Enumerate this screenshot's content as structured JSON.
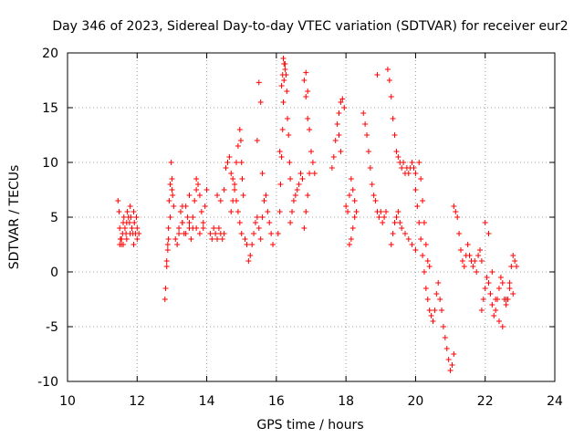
{
  "chart_data": {
    "type": "scatter",
    "title": "Day 346 of 2023, Sidereal Day-to-day VTEC variation (SDTVAR) for receiver eur2",
    "xlabel": "GPS time / hours",
    "ylabel": "SDTVAR / TECUs",
    "xlim": [
      10,
      24
    ],
    "ylim": [
      -10,
      20
    ],
    "xticks": [
      10,
      12,
      14,
      16,
      18,
      20,
      22,
      24
    ],
    "yticks": [
      -10,
      -5,
      0,
      5,
      10,
      15,
      20
    ],
    "xtick_labels": [
      "10",
      "12",
      "14",
      "16",
      "18",
      "20",
      "22",
      "24"
    ],
    "ytick_labels": [
      "-10",
      "-5",
      "0",
      "5",
      "10",
      "15",
      "20"
    ],
    "grid": true,
    "marker": "+",
    "marker_color": "#ff0000",
    "series": [
      {
        "name": "eur2",
        "x": [
          11.45,
          11.48,
          11.5,
          11.52,
          11.55,
          11.58,
          11.6,
          11.62,
          11.65,
          11.68,
          11.7,
          11.72,
          11.75,
          11.78,
          11.8,
          11.82,
          11.85,
          11.88,
          11.9,
          11.92,
          11.95,
          11.98,
          12.0,
          12.05,
          11.5,
          11.55,
          11.6,
          11.7,
          11.8,
          11.9,
          12.0,
          12.8,
          12.82,
          12.85,
          12.88,
          12.9,
          12.92,
          12.95,
          12.98,
          13.0,
          13.02,
          13.05,
          12.85,
          12.88,
          12.9,
          12.95,
          13.0,
          13.1,
          13.15,
          13.2,
          13.25,
          13.3,
          13.35,
          13.4,
          13.45,
          13.5,
          13.55,
          13.6,
          13.65,
          13.7,
          13.75,
          13.8,
          13.85,
          13.9,
          13.95,
          14.0,
          13.2,
          13.3,
          13.4,
          13.5,
          13.6,
          13.7,
          13.8,
          13.9,
          13.3,
          13.5,
          13.7,
          14.1,
          14.15,
          14.2,
          14.25,
          14.3,
          14.35,
          14.4,
          14.45,
          14.5,
          14.3,
          14.4,
          14.5,
          14.55,
          14.6,
          14.65,
          14.7,
          14.75,
          14.8,
          14.85,
          14.9,
          14.95,
          15.0,
          14.7,
          14.75,
          14.8,
          14.85,
          14.9,
          14.95,
          14.98,
          15.0,
          15.02,
          15.05,
          15.1,
          15.15,
          15.2,
          15.25,
          15.3,
          15.35,
          15.4,
          15.45,
          15.5,
          15.55,
          15.6,
          15.65,
          15.7,
          15.75,
          15.8,
          15.85,
          15.9,
          15.5,
          15.55,
          15.45,
          15.6,
          16.05,
          16.1,
          16.12,
          16.15,
          16.18,
          16.2,
          16.22,
          16.25,
          16.28,
          16.3,
          16.32,
          16.35,
          16.38,
          16.4,
          16.2,
          16.22,
          16.25,
          16.18,
          16.15,
          16.1,
          16.4,
          16.45,
          16.5,
          16.55,
          16.6,
          16.65,
          16.7,
          16.75,
          16.8,
          16.85,
          16.9,
          16.95,
          17.0,
          16.8,
          16.85,
          16.9,
          16.95,
          17.0,
          17.05,
          17.1,
          16.85,
          16.9,
          17.6,
          17.65,
          17.7,
          17.75,
          17.8,
          17.85,
          17.9,
          17.95,
          17.8,
          17.85,
          18.0,
          18.05,
          18.1,
          18.15,
          18.2,
          18.25,
          18.3,
          18.1,
          18.15,
          18.2,
          18.25,
          18.5,
          18.55,
          18.6,
          18.65,
          18.7,
          18.75,
          18.8,
          18.85,
          18.9,
          18.95,
          18.9,
          19.0,
          19.05,
          19.1,
          19.15,
          19.2,
          19.25,
          19.3,
          19.35,
          19.4,
          19.45,
          19.5,
          19.55,
          19.6,
          19.65,
          19.7,
          19.75,
          19.8,
          19.85,
          19.9,
          19.95,
          20.0,
          19.3,
          19.35,
          19.4,
          19.45,
          19.5,
          19.55,
          19.6,
          19.7,
          19.8,
          19.9,
          20.0,
          20.0,
          20.05,
          20.1,
          20.15,
          20.2,
          20.25,
          20.3,
          20.35,
          20.4,
          20.45,
          20.5,
          20.55,
          20.6,
          20.65,
          20.7,
          20.75,
          20.8,
          20.85,
          20.9,
          20.95,
          21.0,
          21.05,
          21.1,
          20.1,
          20.15,
          20.2,
          20.25,
          20.3,
          20.35,
          20.4,
          21.1,
          21.15,
          21.2,
          21.25,
          21.3,
          21.35,
          21.4,
          21.45,
          21.5,
          21.55,
          21.6,
          21.65,
          21.7,
          21.75,
          21.8,
          21.85,
          21.9,
          21.9,
          21.95,
          22.0,
          22.05,
          22.1,
          22.15,
          22.2,
          22.25,
          22.3,
          22.35,
          22.4,
          22.45,
          22.5,
          22.55,
          22.6,
          22.65,
          22.7,
          22.75,
          22.8,
          22.85,
          22.9,
          22.0,
          22.1,
          22.2,
          22.3,
          22.4,
          22.5,
          22.6,
          22.7,
          22.8
        ],
        "y": [
          6.5,
          5.5,
          4.0,
          3.0,
          2.5,
          3.5,
          4.5,
          5.0,
          4.0,
          3.5,
          4.5,
          5.5,
          5.0,
          4.5,
          6.0,
          5.0,
          4.0,
          3.5,
          5.5,
          4.5,
          3.5,
          5.0,
          3.0,
          3.5,
          2.5,
          3.0,
          2.5,
          3.0,
          3.5,
          2.5,
          4.0,
          -2.5,
          -1.5,
          0.5,
          2.0,
          4.0,
          6.5,
          8.0,
          10.0,
          8.5,
          7.0,
          6.0,
          1.0,
          2.5,
          3.0,
          5.0,
          7.5,
          3.0,
          2.5,
          4.0,
          5.5,
          4.5,
          3.5,
          6.0,
          5.0,
          4.5,
          3.0,
          4.0,
          6.5,
          7.5,
          8.0,
          7.0,
          5.5,
          4.0,
          6.0,
          7.5,
          3.5,
          4.5,
          3.5,
          4.0,
          5.0,
          4.0,
          3.5,
          4.5,
          6.0,
          7.0,
          8.5,
          3.5,
          3.0,
          4.0,
          3.5,
          3.0,
          4.0,
          3.5,
          3.0,
          3.5,
          7.0,
          6.5,
          7.5,
          9.5,
          10.0,
          10.5,
          9.0,
          8.5,
          7.5,
          6.5,
          5.5,
          4.5,
          3.5,
          5.5,
          6.5,
          8.0,
          10.0,
          11.5,
          13.0,
          12.0,
          10.0,
          8.5,
          7.0,
          3.0,
          2.5,
          1.0,
          1.5,
          2.5,
          3.5,
          4.5,
          5.0,
          4.0,
          3.0,
          5.0,
          6.5,
          7.0,
          5.5,
          4.5,
          3.5,
          2.5,
          17.3,
          15.5,
          12.0,
          9.0,
          3.5,
          5.5,
          8.0,
          10.5,
          13.0,
          15.5,
          17.5,
          19.0,
          18.0,
          16.5,
          14.0,
          12.5,
          10.0,
          8.5,
          19.5,
          19.0,
          18.5,
          18.0,
          17.0,
          11.0,
          4.5,
          5.5,
          6.5,
          7.0,
          7.5,
          8.0,
          9.0,
          8.5,
          4.0,
          5.5,
          7.0,
          9.0,
          11.0,
          17.5,
          16.0,
          14.0,
          13.0,
          11.0,
          10.0,
          9.0,
          18.2,
          16.5,
          9.5,
          10.5,
          12.0,
          13.5,
          14.5,
          15.5,
          15.8,
          15.0,
          12.5,
          11.0,
          6.0,
          5.5,
          7.0,
          8.5,
          7.5,
          6.5,
          5.5,
          2.5,
          3.0,
          4.0,
          5.0,
          14.5,
          13.5,
          12.5,
          11.0,
          9.5,
          8.0,
          7.0,
          6.5,
          5.5,
          5.0,
          18.0,
          5.5,
          4.5,
          5.0,
          5.5,
          18.5,
          17.5,
          16.0,
          14.0,
          12.5,
          11.0,
          10.5,
          10.0,
          9.5,
          10.0,
          9.0,
          9.5,
          9.0,
          9.5,
          10.0,
          9.5,
          9.0,
          2.5,
          3.5,
          4.5,
          5.0,
          5.5,
          4.5,
          4.0,
          3.5,
          3.0,
          2.5,
          2.0,
          7.5,
          6.0,
          4.5,
          3.0,
          1.5,
          0.0,
          -1.5,
          -2.5,
          -3.5,
          -4.0,
          -4.5,
          -3.5,
          -2.0,
          -1.0,
          -2.5,
          -3.5,
          -5.0,
          -6.0,
          -7.0,
          -8.0,
          -9.0,
          -8.5,
          -7.5,
          10.0,
          8.5,
          6.5,
          4.5,
          2.5,
          1.0,
          0.5,
          6.0,
          5.5,
          5.0,
          3.5,
          2.0,
          1.0,
          0.5,
          1.5,
          2.5,
          1.5,
          1.0,
          0.5,
          1.0,
          0.0,
          1.5,
          2.0,
          1.0,
          -3.5,
          -2.5,
          -1.5,
          -0.5,
          -1.0,
          -2.0,
          -3.0,
          -4.0,
          -3.5,
          -2.5,
          -1.5,
          -0.5,
          -1.0,
          -2.5,
          -3.0,
          -2.5,
          -1.0,
          0.5,
          1.5,
          1.0,
          0.5,
          4.5,
          3.5,
          0.0,
          -2.5,
          -4.5,
          -5.0,
          -2.5,
          -1.5,
          -2.0
        ]
      }
    ]
  }
}
